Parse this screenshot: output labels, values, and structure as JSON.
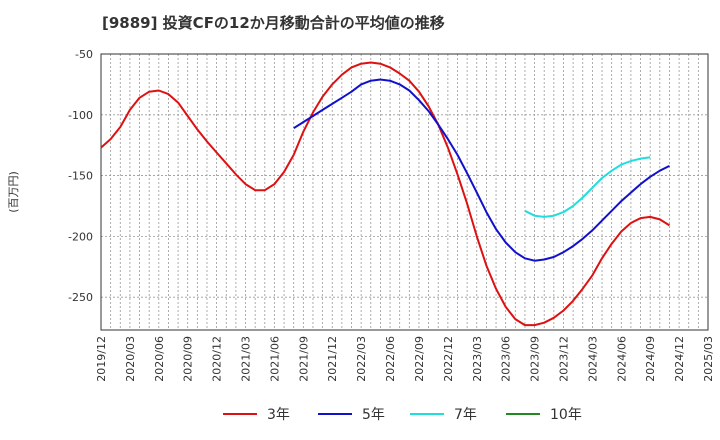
{
  "chart_data": {
    "type": "line",
    "title": "[9889]  投資CFの12か月移動合計の平均値の推移",
    "ylabel": "(百万円)",
    "xlabel": "",
    "ylim": [
      -277,
      -50
    ],
    "yticks": [
      -50,
      -100,
      -150,
      -200,
      -250
    ],
    "xlim": [
      "2019-12",
      "2025-03"
    ],
    "xticks": [
      "2019/12",
      "2020/03",
      "2020/06",
      "2020/09",
      "2020/12",
      "2021/03",
      "2021/06",
      "2021/09",
      "2021/12",
      "2022/03",
      "2022/06",
      "2022/09",
      "2022/12",
      "2023/03",
      "2023/06",
      "2023/09",
      "2023/12",
      "2024/03",
      "2024/06",
      "2024/09",
      "2024/12",
      "2025/03"
    ],
    "grid": true,
    "legend_position": "bottom",
    "series": [
      {
        "name": "3年",
        "color": "#dd1111",
        "start": "2019-12",
        "values": [
          -127,
          -120,
          -110,
          -96,
          -86,
          -81,
          -80,
          -83,
          -90,
          -101,
          -112,
          -122,
          -131,
          -140,
          -149,
          -157,
          -162,
          -162,
          -157,
          -147,
          -133,
          -114,
          -98,
          -85,
          -75,
          -67,
          -61,
          -58,
          -57,
          -58,
          -61,
          -66,
          -72,
          -81,
          -93,
          -108,
          -127,
          -149,
          -173,
          -200,
          -224,
          -243,
          -258,
          -268,
          -273,
          -273,
          -271,
          -267,
          -261,
          -253,
          -243,
          -232,
          -218,
          -206,
          -196,
          -189,
          -185,
          -184,
          -186,
          -191
        ]
      },
      {
        "name": "5年",
        "color": "#1111cc",
        "start": "2021-08",
        "values": [
          -111,
          -106,
          -101,
          -96,
          -91,
          -86,
          -81,
          -75,
          -72,
          -71,
          -72,
          -75,
          -80,
          -88,
          -97,
          -108,
          -120,
          -133,
          -148,
          -164,
          -180,
          -194,
          -205,
          -213,
          -218,
          -220,
          -219,
          -217,
          -213,
          -208,
          -202,
          -195,
          -187,
          -179,
          -171,
          -164,
          -157,
          -151,
          -146,
          -142
        ]
      },
      {
        "name": "7年",
        "color": "#22dddd",
        "start": "2023-08",
        "values": [
          -179,
          -183,
          -184,
          -183,
          -180,
          -175,
          -168,
          -160,
          -152,
          -146,
          -141,
          -138,
          -136,
          -135
        ]
      },
      {
        "name": "10年",
        "color": "#228822",
        "start": "",
        "values": []
      }
    ]
  }
}
